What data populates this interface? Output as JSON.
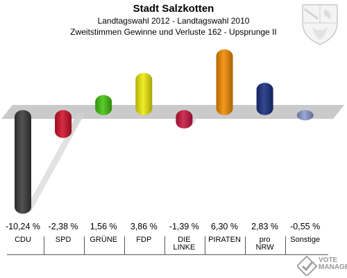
{
  "header": {
    "title": "Stadt Salzkotten",
    "subtitle1": "Landtagswahl 2012 - Landtagswahl 2010",
    "subtitle2": "Zweitstimmen Gewinne und Verluste 162 - Upsprunge II"
  },
  "crest": {
    "icon": "coat-of-arms-nrw-icon"
  },
  "logo": {
    "line1": "VOTE",
    "line2": "MANAGER"
  },
  "chart_data": {
    "type": "bar",
    "categories": [
      "CDU",
      "SPD",
      "GRÜNE",
      "FDP",
      "DIE LINKE",
      "PIRATEN",
      "pro NRW",
      "Sonstige"
    ],
    "values": [
      -10.24,
      -2.38,
      1.56,
      3.86,
      -1.39,
      6.3,
      2.83,
      -0.55
    ],
    "value_labels": [
      "-10,24 %",
      "-2,38 %",
      "1,56 %",
      "3,86 %",
      "-1,39 %",
      "6,30 %",
      "2,83 %",
      "-0,55 %"
    ],
    "colors": [
      "#3b3b3b",
      "#d0102a",
      "#44c40e",
      "#eeea0c",
      "#c8163f",
      "#f28a00",
      "#1a2f80",
      "#8c9ad0"
    ],
    "ylim": [
      -10.24,
      6.3
    ],
    "grid": false,
    "legend": "none"
  }
}
